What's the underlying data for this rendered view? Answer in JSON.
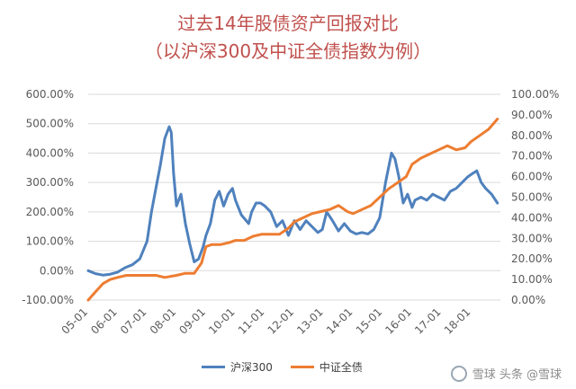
{
  "title_line1": "过去14年股债资产回报对比",
  "title_line2": "（以沪深300及中证全债指数为例）",
  "watermark": "雪球 头条 @雪球",
  "chart_data": {
    "type": "line",
    "x_ticks": [
      "05-01",
      "06-01",
      "07-01",
      "08-01",
      "09-01",
      "10-01",
      "11-01",
      "12-01",
      "13-01",
      "14-01",
      "15-01",
      "16-01",
      "17-01",
      "18-01"
    ],
    "y_left_ticks": [
      "-100.00%",
      "0.00%",
      "100.00%",
      "200.00%",
      "300.00%",
      "400.00%",
      "500.00%",
      "600.00%"
    ],
    "y_right_ticks": [
      "0.00%",
      "10.00%",
      "20.00%",
      "30.00%",
      "40.00%",
      "50.00%",
      "60.00%",
      "70.00%",
      "80.00%",
      "90.00%",
      "100.00%"
    ],
    "y_left_range": [
      -100,
      600
    ],
    "y_right_range": [
      0,
      100
    ],
    "series": [
      {
        "name": "沪深300",
        "axis": "left",
        "color": "#4f81bd",
        "x": [
          2005.0,
          2005.25,
          2005.5,
          2005.75,
          2006.0,
          2006.25,
          2006.5,
          2006.75,
          2007.0,
          2007.15,
          2007.3,
          2007.45,
          2007.6,
          2007.75,
          2007.82,
          2007.9,
          2008.0,
          2008.15,
          2008.3,
          2008.45,
          2008.6,
          2008.75,
          2008.9,
          2009.0,
          2009.15,
          2009.3,
          2009.45,
          2009.6,
          2009.75,
          2009.9,
          2010.0,
          2010.2,
          2010.45,
          2010.55,
          2010.7,
          2010.85,
          2011.0,
          2011.2,
          2011.4,
          2011.6,
          2011.8,
          2012.0,
          2012.2,
          2012.4,
          2012.6,
          2012.8,
          2012.95,
          2013.1,
          2013.3,
          2013.5,
          2013.7,
          2013.9,
          2014.1,
          2014.3,
          2014.5,
          2014.7,
          2014.9,
          2015.1,
          2015.3,
          2015.42,
          2015.55,
          2015.7,
          2015.85,
          2016.0,
          2016.1,
          2016.3,
          2016.5,
          2016.7,
          2016.9,
          2017.1,
          2017.3,
          2017.5,
          2017.7,
          2017.9,
          2018.05,
          2018.2,
          2018.35,
          2018.5,
          2018.7,
          2018.9
        ],
        "y": [
          0,
          -10,
          -15,
          -12,
          -5,
          10,
          20,
          40,
          100,
          200,
          280,
          360,
          450,
          490,
          470,
          330,
          220,
          260,
          160,
          90,
          30,
          40,
          80,
          120,
          160,
          240,
          270,
          220,
          260,
          280,
          240,
          190,
          160,
          200,
          230,
          230,
          220,
          200,
          150,
          170,
          120,
          170,
          140,
          170,
          150,
          130,
          140,
          200,
          170,
          135,
          160,
          135,
          125,
          130,
          125,
          140,
          180,
          300,
          400,
          380,
          320,
          230,
          260,
          215,
          240,
          250,
          240,
          260,
          250,
          240,
          270,
          280,
          300,
          320,
          330,
          340,
          300,
          280,
          260,
          230
        ]
      },
      {
        "name": "中证全债",
        "axis": "right",
        "color": "#ed7d31",
        "x": [
          2005.0,
          2005.25,
          2005.5,
          2005.75,
          2006.0,
          2006.3,
          2006.6,
          2007.0,
          2007.3,
          2007.6,
          2008.0,
          2008.3,
          2008.6,
          2008.85,
          2009.0,
          2009.2,
          2009.5,
          2009.8,
          2010.0,
          2010.3,
          2010.6,
          2010.9,
          2011.2,
          2011.5,
          2011.8,
          2012.0,
          2012.3,
          2012.6,
          2012.9,
          2013.2,
          2013.5,
          2013.8,
          2014.0,
          2014.3,
          2014.6,
          2014.9,
          2015.2,
          2015.5,
          2015.8,
          2016.0,
          2016.3,
          2016.6,
          2016.9,
          2017.2,
          2017.5,
          2017.8,
          2018.0,
          2018.3,
          2018.6,
          2018.9
        ],
        "y": [
          0,
          4,
          8,
          10,
          11,
          12,
          12,
          12,
          12,
          11,
          12,
          13,
          13,
          18,
          26,
          27,
          27,
          28,
          29,
          29,
          31,
          32,
          32,
          32,
          35,
          38,
          40,
          42,
          43,
          44,
          46,
          43,
          42,
          44,
          46,
          50,
          54,
          57,
          60,
          66,
          69,
          71,
          73,
          75,
          73,
          74,
          77,
          80,
          83,
          88
        ]
      }
    ]
  }
}
